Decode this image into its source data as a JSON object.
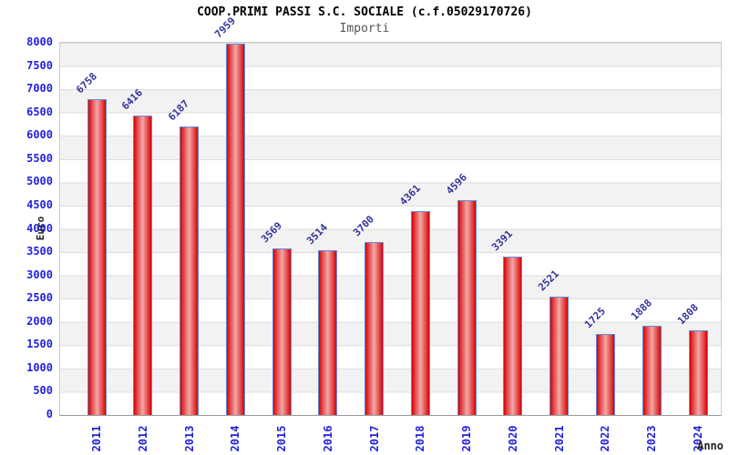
{
  "chart_data": {
    "type": "bar",
    "title": "COOP.PRIMI PASSI S.C. SOCIALE (c.f.05029170726)",
    "subtitle": "Importi",
    "xlabel": "Anno",
    "ylabel": "Euro",
    "categories": [
      "2011",
      "2012",
      "2013",
      "2014",
      "2015",
      "2016",
      "2017",
      "2018",
      "2019",
      "2020",
      "2021",
      "2022",
      "2023",
      "2024"
    ],
    "values": [
      6758,
      6416,
      6187,
      7959,
      3569,
      3514,
      3700,
      4361,
      4596,
      3391,
      2521,
      1725,
      1888,
      1808
    ],
    "ylim": [
      0,
      8000
    ],
    "ytick_step": 500,
    "legend": "none",
    "grid": "horizontal-bands-alternating",
    "band_colors": [
      "#f2f2f2",
      "#ffffff"
    ],
    "value_labels_rotation_deg": -45,
    "xtick_rotation_deg": -90
  },
  "colors": {
    "tick_label": "#2222dd",
    "value_label": "#333399",
    "bar_edge": "#5b8dde",
    "bar_fill_edge": "#d40008",
    "bar_fill_center": "#f2a8a8",
    "gridline": "#dedede",
    "axis_line": "#999999",
    "subtitle_text": "#555555",
    "title_text": "#000000"
  }
}
